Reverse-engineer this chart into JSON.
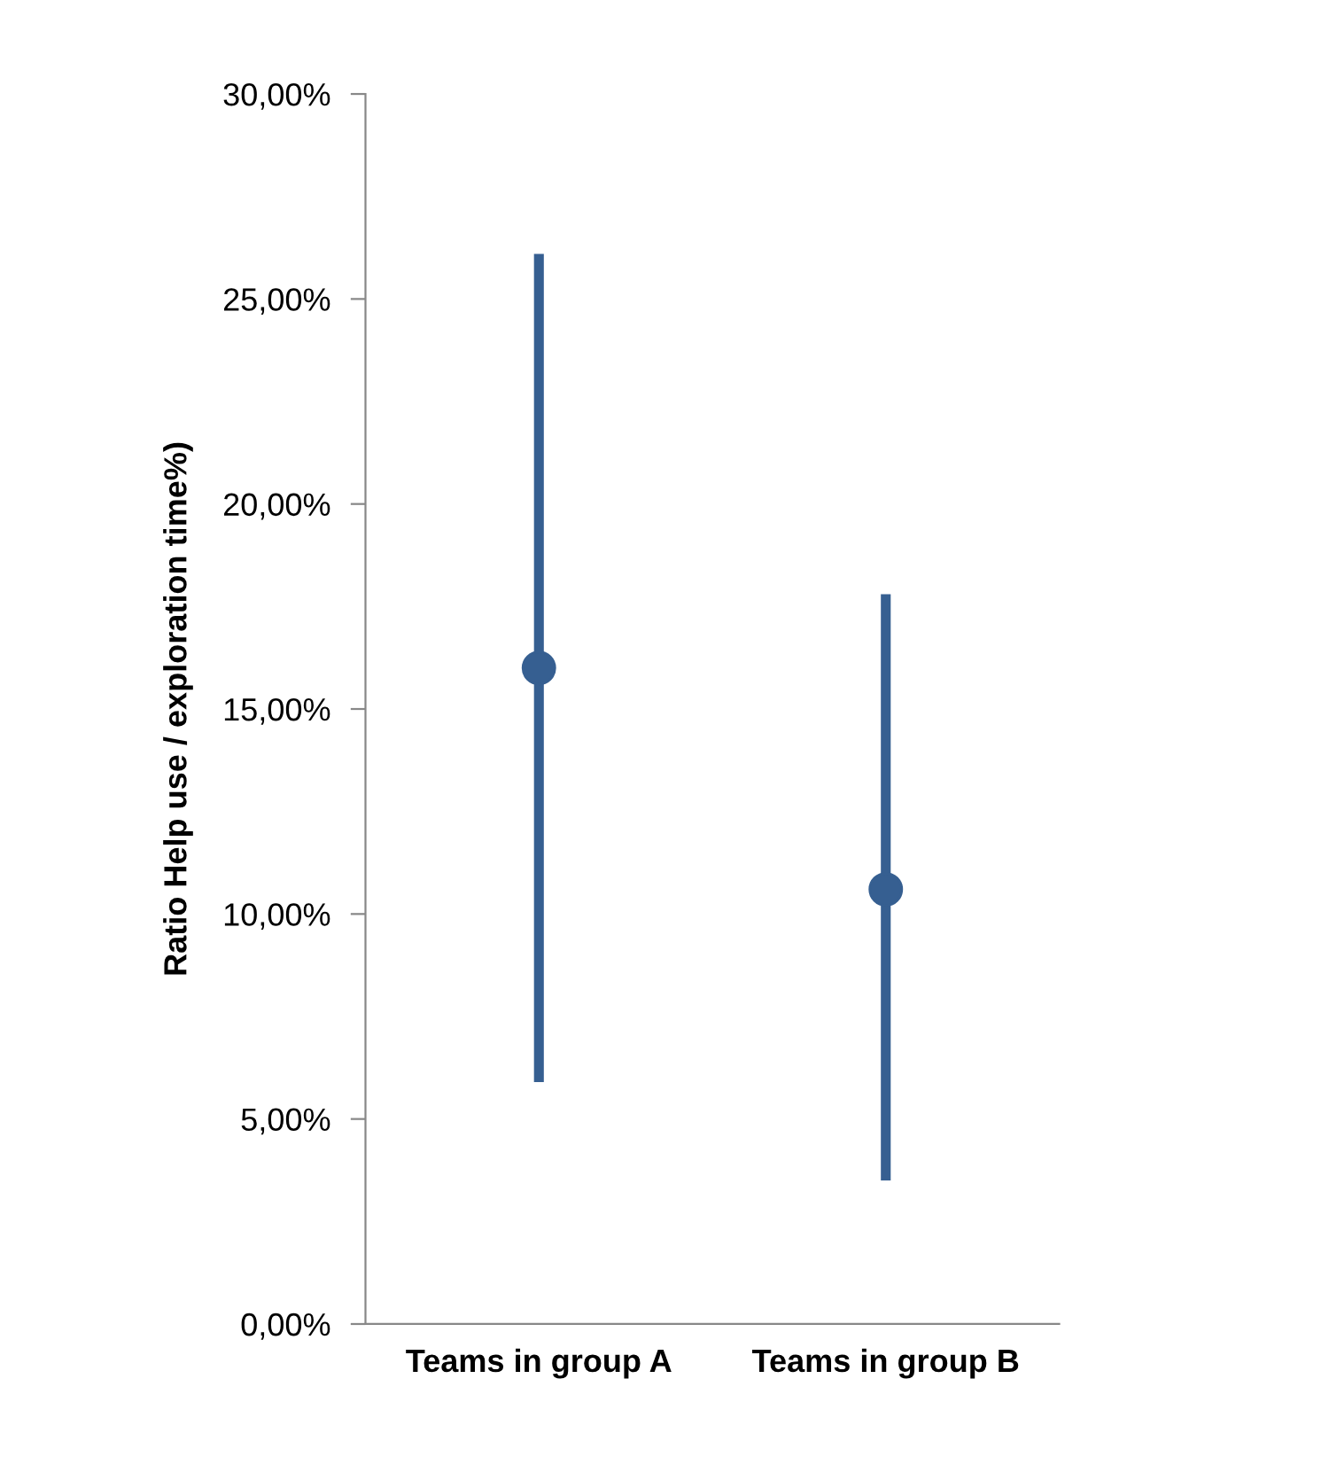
{
  "chart_data": {
    "type": "scatter",
    "ylabel": "Ratio Help use / exploration time%)",
    "categories": [
      "Teams in group A",
      "Teams in group B"
    ],
    "series": [
      {
        "color": "#365f91",
        "values": [
          16.0,
          10.6
        ],
        "errors": [
          [
            5.9,
            26.1
          ],
          [
            3.5,
            17.8
          ]
        ]
      }
    ],
    "marker": "circle",
    "grid": false,
    "legend": false,
    "ylim": [
      0,
      30
    ],
    "yticks": [
      {
        "value": 0,
        "label": "0,00%"
      },
      {
        "value": 5,
        "label": "5,00%"
      },
      {
        "value": 10,
        "label": "10,00%"
      },
      {
        "value": 15,
        "label": "15,00%"
      },
      {
        "value": 20,
        "label": "20,00%"
      },
      {
        "value": 25,
        "label": "25,00%"
      },
      {
        "value": 30,
        "label": "30,00%"
      }
    ]
  }
}
